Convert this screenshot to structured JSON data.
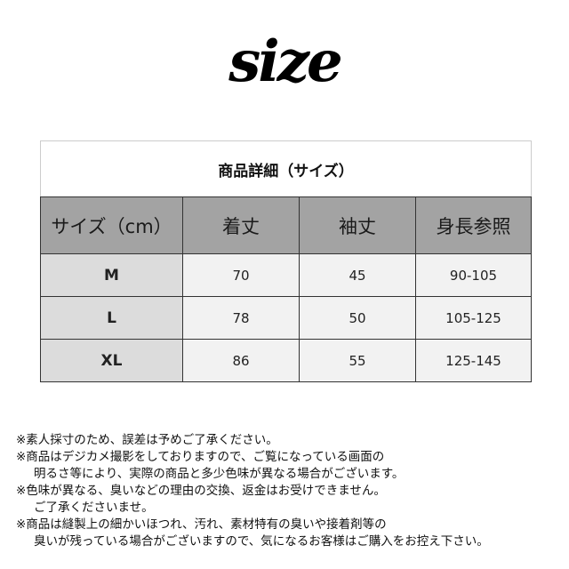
{
  "logo": "size",
  "table": {
    "title": "商品詳細（サイズ）",
    "headers": [
      "サイズ（cm）",
      "着丈",
      "袖丈",
      "身長参照"
    ],
    "rows": [
      [
        "M",
        "70",
        "45",
        "90-105"
      ],
      [
        "L",
        "78",
        "50",
        "105-125"
      ],
      [
        "XL",
        "86",
        "55",
        "125-145"
      ]
    ]
  },
  "notes": [
    "※素人採寸のため、誤差は予めご了承ください。",
    "※商品はデジカメ撮影をしておりますので、ご覧になっている画面の",
    "明るさ等により、実際の商品と多少色味が異なる場合がございます。",
    "※色味が異なる、臭いなどの理由の交換、返金はお受けできません。",
    "ご了承くださいませ。",
    "※商品は縫製上の細かいほつれ、汚れ、素材特有の臭いや接着剤等の",
    "臭いが残っている場合がございますので、気になるお客様はご購入をお控え下さい。"
  ]
}
